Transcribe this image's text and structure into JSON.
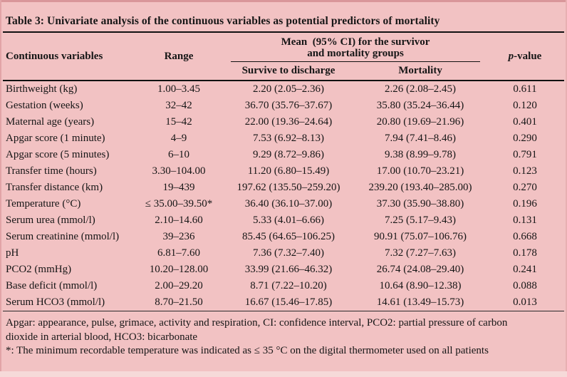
{
  "colors": {
    "page_background": "#F2C2C3",
    "text": "#161616",
    "rule": "#111111",
    "edge_top": "#D9969A",
    "edge_bottom": "#F6DAD9"
  },
  "title": "Table 3: Univariate analysis of the continuous variables as potential predictors of mortality",
  "table": {
    "headers": {
      "variables": "Continuous variables",
      "range": "Range",
      "group_line1": "Mean  (95% CI) for the survivor",
      "group_line2": "and mortality groups",
      "survive": "Survive to discharge",
      "mortality": "Mortality",
      "p_italic": "p",
      "p_rest": "-value"
    },
    "rows": [
      {
        "variable": "Birthweight (kg)",
        "range": "1.00–3.45",
        "survive": "2.20 (2.05–2.36)",
        "mortality": "2.26 (2.08–2.45)",
        "p_value": "0.611"
      },
      {
        "variable": "Gestation (weeks)",
        "range": "32–42",
        "survive": "36.70 (35.76–37.67)",
        "mortality": "35.80 (35.24–36.44)",
        "p_value": "0.120"
      },
      {
        "variable": "Maternal age (years)",
        "range": "15–42",
        "survive": "22.00 (19.36–24.64)",
        "mortality": "20.80 (19.69–21.96)",
        "p_value": "0.401"
      },
      {
        "variable": "Apgar score (1 minute)",
        "range": "4–9",
        "survive": "7.53 (6.92–8.13)",
        "mortality": "7.94 (7.41–8.46)",
        "p_value": "0.290"
      },
      {
        "variable": "Apgar score (5 minutes)",
        "range": "6–10",
        "survive": "9.29 (8.72–9.86)",
        "mortality": "9.38 (8.99–9.78)",
        "p_value": "0.791"
      },
      {
        "variable": "Transfer time (hours)",
        "range": "3.30–104.00",
        "survive": "11.20 (6.80–15.49)",
        "mortality": "17.00 (10.70–23.21)",
        "p_value": "0.123"
      },
      {
        "variable": "Transfer distance (km)",
        "range": "19–439",
        "survive": "197.62 (135.50–259.20)",
        "mortality": "239.20 (193.40–285.00)",
        "p_value": "0.270"
      },
      {
        "variable": "Temperature (°C)",
        "range": "≤ 35.00–39.50*",
        "survive": "36.40 (36.10–37.00)",
        "mortality": "37.30 (35.90–38.80)",
        "p_value": "0.196"
      },
      {
        "variable": "Serum urea (mmol/l)",
        "range": "2.10–14.60",
        "survive": "5.33 (4.01–6.66)",
        "mortality": "7.25 (5.17–9.43)",
        "p_value": "0.131"
      },
      {
        "variable": "Serum creatinine (mmol/l)",
        "range": "39–236",
        "survive": "85.45 (64.65–106.25)",
        "mortality": "90.91 (75.07–106.76)",
        "p_value": "0.668"
      },
      {
        "variable": "pH",
        "range": "6.81–7.60",
        "survive": "7.36 (7.32–7.40)",
        "mortality": "7.32 (7.27–7.63)",
        "p_value": "0.178"
      },
      {
        "variable": "PCO2 (mmHg)",
        "range": "10.20–128.00",
        "survive": "33.99 (21.66–46.32)",
        "mortality": "26.74 (24.08–29.40)",
        "p_value": "0.241"
      },
      {
        "variable": "Base deficit (mmol/l)",
        "range": "2.00–29.20",
        "survive": "8.71 (7.22–10.20)",
        "mortality": "10.64 (8.90–12.38)",
        "p_value": "0.088"
      },
      {
        "variable": "Serum HCO3 (mmol/l)",
        "range": "8.70–21.50",
        "survive": "16.67 (15.46–17.85)",
        "mortality": "14.61 (13.49–15.73)",
        "p_value": "0.013"
      }
    ]
  },
  "footnotes": [
    "Apgar: appearance, pulse, grimace, activity and respiration, CI: confidence interval, PCO2: partial pressure of carbon dioxide in arterial blood, HCO3: bicarbonate",
    "*: The minimum recordable temperature was indicated as ≤ 35 °C on the digital thermometer used on all patients"
  ]
}
